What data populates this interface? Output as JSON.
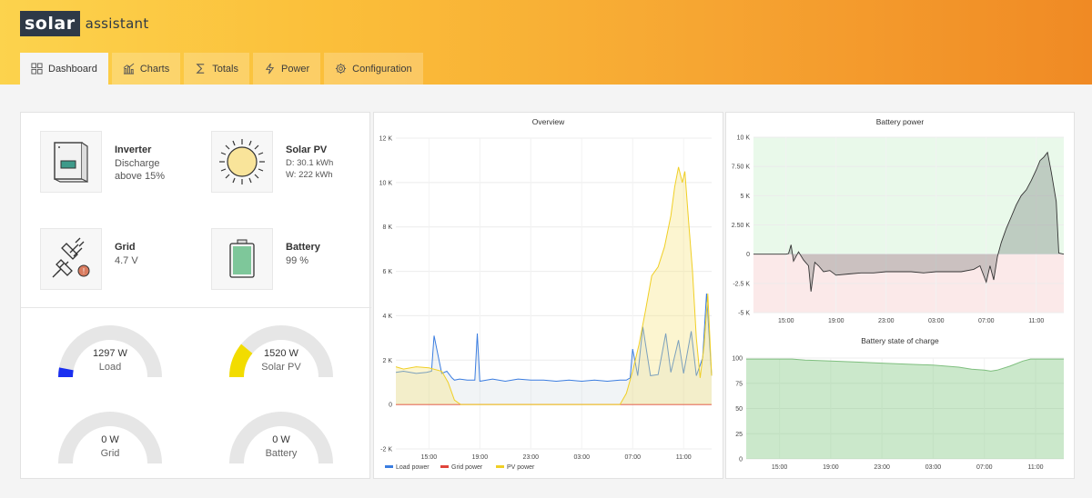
{
  "brand": {
    "logo_box": "solar",
    "logo_text": "assistant"
  },
  "tabs": [
    {
      "label": "Dashboard",
      "icon": "grid-icon",
      "active": true
    },
    {
      "label": "Charts",
      "icon": "bar-chart-icon",
      "active": false
    },
    {
      "label": "Totals",
      "icon": "sigma-icon",
      "active": false
    },
    {
      "label": "Power",
      "icon": "lightning-icon",
      "active": false
    },
    {
      "label": "Configuration",
      "icon": "gear-icon",
      "active": false
    }
  ],
  "cards": {
    "inverter": {
      "title": "Inverter",
      "line1": "Discharge",
      "line2": "above 15%"
    },
    "solar": {
      "title": "Solar PV",
      "line1": "D: 30.1 kWh",
      "line2": "W: 222 kWh"
    },
    "grid": {
      "title": "Grid",
      "line1": "4.7 V"
    },
    "battery": {
      "title": "Battery",
      "line1": "99 %"
    }
  },
  "gauges": {
    "load": {
      "value": "1297 W",
      "label": "Load",
      "fraction": 0.06,
      "color": "#1a2ff0"
    },
    "solar": {
      "value": "1520 W",
      "label": "Solar PV",
      "fraction": 0.22,
      "color": "#f2dc00"
    },
    "grid": {
      "value": "0 W",
      "label": "Grid",
      "fraction": 0,
      "color": "#1a2ff0"
    },
    "battery": {
      "value": "0 W",
      "label": "Battery",
      "fraction": 0,
      "color": "#1a2ff0"
    }
  },
  "chart_data": [
    {
      "type": "area",
      "title": "Overview",
      "ylim": [
        -2000,
        12000
      ],
      "y_ticks": [
        "12 K",
        "10 K",
        "8 K",
        "6 K",
        "4 K",
        "2 K",
        "0",
        "-2 K"
      ],
      "x_ticks": [
        "15:00",
        "19:00",
        "23:00",
        "03:00",
        "07:00",
        "11:00"
      ],
      "x_hours": [
        15,
        19,
        23,
        27,
        31,
        35
      ],
      "x_range_hours": [
        12.4,
        37.2
      ],
      "legend": "bottom-left",
      "series": [
        {
          "name": "Load power",
          "color": "#3b7de0",
          "x": [
            12.4,
            13,
            14,
            14.8,
            15.2,
            15.4,
            16,
            16.4,
            16.8,
            17,
            17.4,
            18,
            18.6,
            18.8,
            19,
            20,
            21,
            22,
            23,
            24,
            25,
            26,
            27,
            28,
            29,
            30,
            30.5,
            30.8,
            31,
            31.4,
            31.8,
            32.4,
            33,
            33.6,
            34,
            34.6,
            35,
            35.6,
            36,
            36.5,
            36.8,
            37.2
          ],
          "y": [
            1450,
            1500,
            1400,
            1450,
            1500,
            3100,
            1400,
            1500,
            1200,
            1100,
            1150,
            1100,
            1100,
            3200,
            1050,
            1150,
            1050,
            1150,
            1100,
            1100,
            1050,
            1100,
            1050,
            1100,
            1050,
            1100,
            1100,
            1200,
            2500,
            1300,
            3500,
            1300,
            1350,
            3200,
            1450,
            2900,
            1400,
            3300,
            1300,
            2100,
            5000,
            1300
          ]
        },
        {
          "name": "Grid power",
          "color": "#e0443b",
          "x": [
            12.4,
            37.2
          ],
          "y": [
            0,
            0
          ]
        },
        {
          "name": "PV power",
          "color": "#f0cf25",
          "x": [
            12.4,
            13,
            14,
            15,
            16,
            16.5,
            17,
            17.5,
            18,
            30,
            30.5,
            31,
            31.5,
            32,
            32.5,
            33,
            33.5,
            34,
            34.3,
            34.6,
            34.9,
            35.1,
            35.4,
            35.7,
            36,
            36.3,
            36.6,
            36.9,
            37.2
          ],
          "y": [
            1700,
            1600,
            1700,
            1650,
            1500,
            1000,
            200,
            0,
            0,
            0,
            500,
            1500,
            2700,
            4200,
            5800,
            6200,
            7100,
            8500,
            9800,
            10700,
            10000,
            10500,
            8200,
            6000,
            3000,
            1200,
            2600,
            5000,
            1300
          ]
        }
      ]
    },
    {
      "type": "area",
      "title": "Battery power",
      "ylim": [
        -5000,
        10000
      ],
      "y_ticks": [
        "10 K",
        "7.50 K",
        "5 K",
        "2.50 K",
        "0",
        "-2.5 K",
        "-5 K"
      ],
      "x_ticks": [
        "15:00",
        "19:00",
        "23:00",
        "03:00",
        "07:00",
        "11:00"
      ],
      "series": [
        {
          "name": "Battery power",
          "color": "#333333",
          "x": [
            12.4,
            15,
            15.2,
            15.4,
            15.6,
            16,
            16.4,
            16.8,
            17,
            17.3,
            17.6,
            18,
            18.5,
            19,
            20,
            21,
            22,
            23,
            24,
            25,
            26,
            27,
            28,
            29,
            30,
            30.5,
            31,
            31.3,
            31.6,
            31.9,
            32.2,
            32.6,
            33,
            33.4,
            33.8,
            34.2,
            34.6,
            35,
            35.3,
            35.6,
            35.9,
            36.2,
            36.6,
            36.8,
            37.2
          ],
          "y": [
            0,
            0,
            50,
            800,
            -600,
            200,
            -500,
            -1000,
            -3200,
            -700,
            -1000,
            -1500,
            -1400,
            -1800,
            -1700,
            -1600,
            -1600,
            -1500,
            -1500,
            -1500,
            -1600,
            -1500,
            -1500,
            -1500,
            -1300,
            -1000,
            -2400,
            -1000,
            -2200,
            -200,
            1000,
            2200,
            3200,
            4200,
            5000,
            5500,
            6300,
            7200,
            8000,
            8300,
            8700,
            7000,
            4500,
            100,
            0
          ]
        }
      ]
    },
    {
      "type": "area",
      "title": "Battery state of charge",
      "ylim": [
        0,
        100
      ],
      "y_ticks": [
        "100",
        "75",
        "50",
        "25",
        "0"
      ],
      "x_ticks": [
        "15:00",
        "19:00",
        "23:00",
        "03:00",
        "07:00",
        "11:00"
      ],
      "series": [
        {
          "name": "Battery state of charge",
          "color": "#7fbf7f",
          "x": [
            12.4,
            16,
            17,
            19,
            21,
            23,
            25,
            27,
            29,
            30,
            31,
            31.5,
            32,
            33,
            34,
            34.6,
            35,
            37.2
          ],
          "y": [
            99,
            99,
            98,
            97,
            96,
            95,
            94,
            93,
            91,
            89,
            88,
            87,
            88,
            92,
            97,
            99,
            99,
            99
          ]
        }
      ]
    }
  ]
}
